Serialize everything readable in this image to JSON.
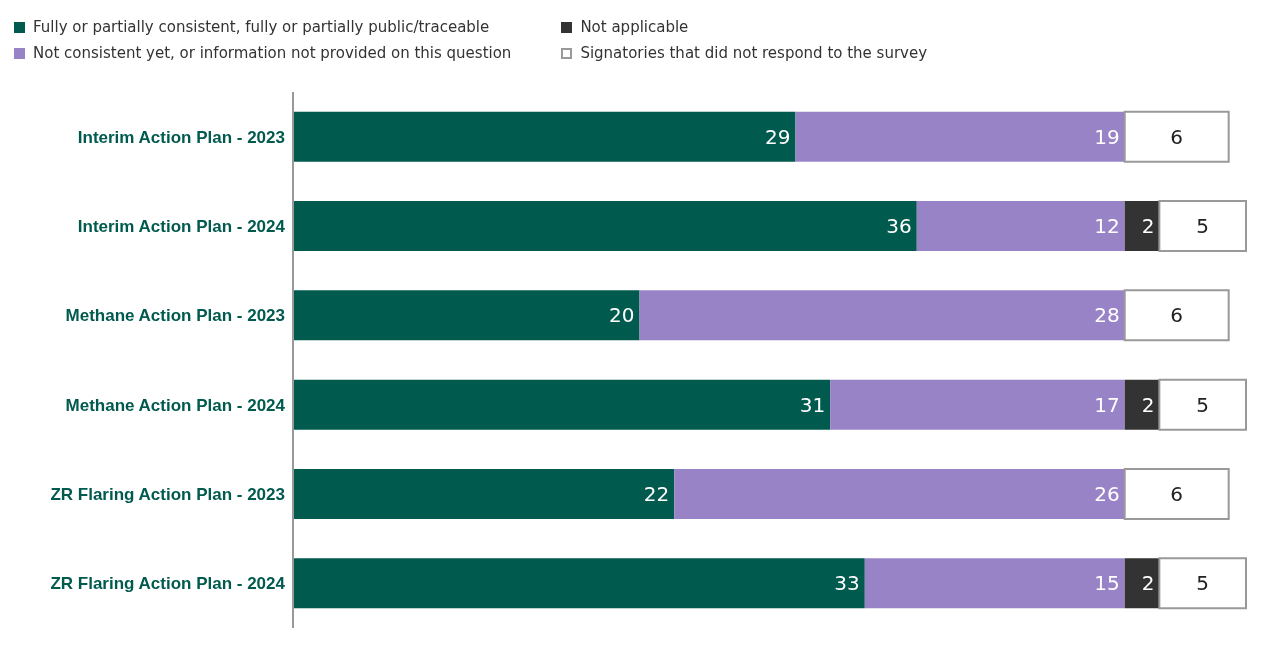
{
  "chart_data": {
    "type": "bar",
    "orientation": "horizontal",
    "stacked": true,
    "data_labels": true,
    "legend": "top left",
    "categories": [
      "Interim Action Plan - 2023",
      "Interim Action Plan - 2024",
      "Methane Action Plan - 2023",
      "Methane Action Plan - 2024",
      "ZR Flaring Action Plan - 2023",
      "ZR Flaring Action Plan - 2024"
    ],
    "series": [
      {
        "name": "Fully or partially consistent, fully or partially public/traceable",
        "color": "#005a4e",
        "values": [
          29,
          36,
          20,
          31,
          22,
          33
        ]
      },
      {
        "name": "Not consistent yet, or information not provided on this question",
        "color": "#9883c7",
        "values": [
          19,
          12,
          28,
          17,
          26,
          15
        ]
      },
      {
        "name": "Not applicable",
        "color": "#333333",
        "values": [
          null,
          2,
          null,
          2,
          null,
          2
        ]
      },
      {
        "name": "Signatories that did not respond to the survey",
        "color": "#ffffff",
        "values": [
          6,
          5,
          6,
          5,
          6,
          5
        ]
      }
    ]
  }
}
